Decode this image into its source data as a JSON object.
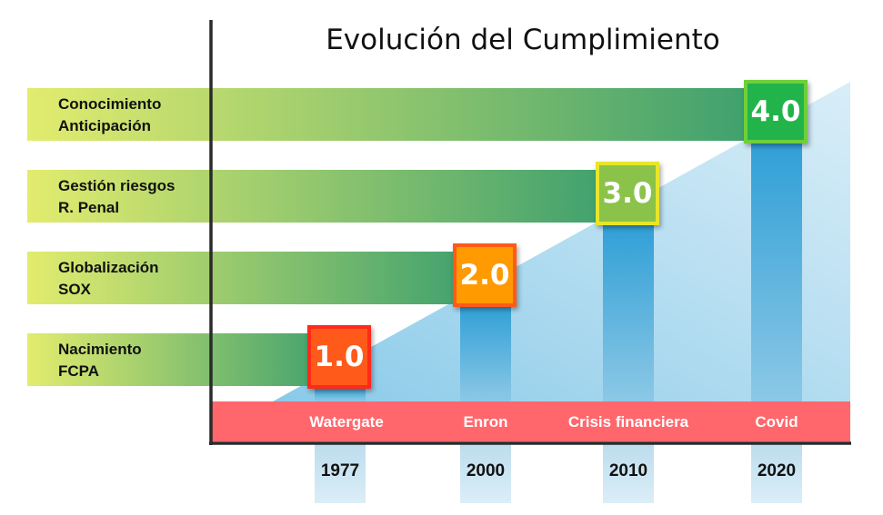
{
  "title": "Evolución del Cumplimiento",
  "stages": [
    {
      "line1": "Conocimiento",
      "line2": "Anticipación",
      "level": "4.0",
      "event": "Covid",
      "year": "2020",
      "box_fill": "#22b44a",
      "box_border": "#6fcf3a"
    },
    {
      "line1": "Gestión riesgos",
      "line2": "R. Penal",
      "level": "3.0",
      "event": "Crisis financiera",
      "year": "2010",
      "box_fill": "#8bc34a",
      "box_border": "#e8e52a"
    },
    {
      "line1": "Globalización",
      "line2": "SOX",
      "level": "2.0",
      "event": "Enron",
      "year": "2000",
      "box_fill": "#ff9a00",
      "box_border": "#ff5a1a"
    },
    {
      "line1": "Nacimiento",
      "line2": "FCPA",
      "level": "1.0",
      "event": "Watergate",
      "year": "1977",
      "box_fill": "#ff5a1a",
      "box_border": "#ff2a1a"
    }
  ],
  "colors": {
    "bar_start": "#e2ec6e",
    "bar_end": "#3a9e6e",
    "timeline": "#ff5a5f",
    "column": "#3aa6d8",
    "triangle": "#a8d8ef",
    "axis": "#2a2a2a"
  }
}
